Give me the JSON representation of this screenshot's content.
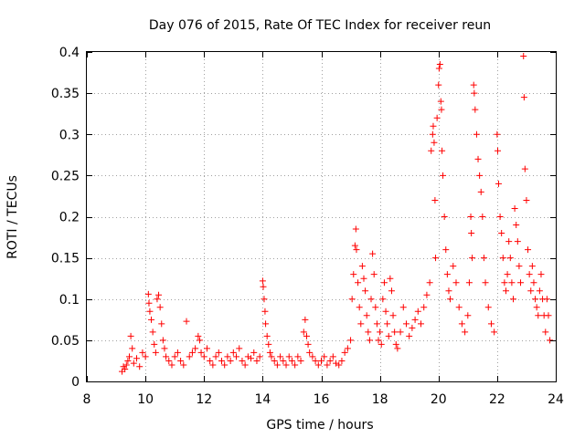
{
  "chart_data": {
    "type": "scatter",
    "title": "Day 076 of 2015, Rate Of TEC Index for receiver reun",
    "xlabel": "GPS time / hours",
    "ylabel": "ROTI / TECUs",
    "xlim": [
      8,
      24
    ],
    "ylim": [
      0,
      0.4
    ],
    "xticks": [
      8,
      10,
      12,
      14,
      16,
      18,
      20,
      22,
      24
    ],
    "yticks": [
      0,
      0.05,
      0.1,
      0.15,
      0.2,
      0.25,
      0.3,
      0.35,
      0.4
    ],
    "xtick_labels": [
      "8",
      "10",
      "12",
      "14",
      "16",
      "18",
      "20",
      "22",
      "24"
    ],
    "ytick_labels": [
      "0",
      "0.05",
      "0.1",
      "0.15",
      "0.2",
      "0.25",
      "0.3",
      "0.35",
      "0.4"
    ],
    "grid": true,
    "marker": "+",
    "color": "#ff0000",
    "series": [
      {
        "name": "ROTI",
        "points": [
          [
            9.2,
            0.012
          ],
          [
            9.25,
            0.018
          ],
          [
            9.3,
            0.015
          ],
          [
            9.35,
            0.02
          ],
          [
            9.4,
            0.025
          ],
          [
            9.45,
            0.03
          ],
          [
            9.5,
            0.055
          ],
          [
            9.55,
            0.04
          ],
          [
            9.6,
            0.022
          ],
          [
            9.7,
            0.028
          ],
          [
            9.8,
            0.018
          ],
          [
            9.9,
            0.035
          ],
          [
            10.0,
            0.03
          ],
          [
            10.1,
            0.106
          ],
          [
            10.12,
            0.095
          ],
          [
            10.15,
            0.085
          ],
          [
            10.2,
            0.075
          ],
          [
            10.25,
            0.06
          ],
          [
            10.3,
            0.045
          ],
          [
            10.35,
            0.035
          ],
          [
            10.4,
            0.1
          ],
          [
            10.45,
            0.105
          ],
          [
            10.5,
            0.09
          ],
          [
            10.55,
            0.07
          ],
          [
            10.6,
            0.05
          ],
          [
            10.65,
            0.04
          ],
          [
            10.7,
            0.03
          ],
          [
            10.8,
            0.025
          ],
          [
            10.9,
            0.02
          ],
          [
            11.0,
            0.03
          ],
          [
            11.1,
            0.035
          ],
          [
            11.2,
            0.025
          ],
          [
            11.3,
            0.02
          ],
          [
            11.4,
            0.073
          ],
          [
            11.5,
            0.03
          ],
          [
            11.6,
            0.035
          ],
          [
            11.7,
            0.04
          ],
          [
            11.8,
            0.055
          ],
          [
            11.85,
            0.05
          ],
          [
            11.9,
            0.035
          ],
          [
            12.0,
            0.03
          ],
          [
            12.1,
            0.04
          ],
          [
            12.2,
            0.025
          ],
          [
            12.3,
            0.02
          ],
          [
            12.4,
            0.03
          ],
          [
            12.5,
            0.035
          ],
          [
            12.6,
            0.025
          ],
          [
            12.7,
            0.02
          ],
          [
            12.8,
            0.03
          ],
          [
            12.9,
            0.025
          ],
          [
            13.0,
            0.035
          ],
          [
            13.1,
            0.03
          ],
          [
            13.2,
            0.04
          ],
          [
            13.3,
            0.025
          ],
          [
            13.4,
            0.02
          ],
          [
            13.5,
            0.03
          ],
          [
            13.6,
            0.028
          ],
          [
            13.7,
            0.035
          ],
          [
            13.8,
            0.025
          ],
          [
            13.9,
            0.03
          ],
          [
            14.0,
            0.122
          ],
          [
            14.02,
            0.115
          ],
          [
            14.05,
            0.1
          ],
          [
            14.08,
            0.085
          ],
          [
            14.1,
            0.07
          ],
          [
            14.15,
            0.055
          ],
          [
            14.2,
            0.045
          ],
          [
            14.25,
            0.035
          ],
          [
            14.3,
            0.03
          ],
          [
            14.4,
            0.025
          ],
          [
            14.5,
            0.02
          ],
          [
            14.6,
            0.03
          ],
          [
            14.7,
            0.025
          ],
          [
            14.8,
            0.02
          ],
          [
            14.9,
            0.03
          ],
          [
            15.0,
            0.025
          ],
          [
            15.1,
            0.02
          ],
          [
            15.2,
            0.03
          ],
          [
            15.3,
            0.025
          ],
          [
            15.4,
            0.06
          ],
          [
            15.45,
            0.075
          ],
          [
            15.5,
            0.055
          ],
          [
            15.55,
            0.045
          ],
          [
            15.6,
            0.035
          ],
          [
            15.7,
            0.03
          ],
          [
            15.8,
            0.025
          ],
          [
            15.9,
            0.02
          ],
          [
            16.0,
            0.025
          ],
          [
            16.1,
            0.03
          ],
          [
            16.2,
            0.02
          ],
          [
            16.3,
            0.025
          ],
          [
            16.4,
            0.03
          ],
          [
            16.5,
            0.022
          ],
          [
            16.6,
            0.02
          ],
          [
            16.7,
            0.025
          ],
          [
            16.8,
            0.035
          ],
          [
            16.9,
            0.04
          ],
          [
            17.0,
            0.05
          ],
          [
            17.05,
            0.1
          ],
          [
            17.1,
            0.13
          ],
          [
            17.15,
            0.165
          ],
          [
            17.18,
            0.185
          ],
          [
            17.2,
            0.16
          ],
          [
            17.25,
            0.12
          ],
          [
            17.3,
            0.09
          ],
          [
            17.35,
            0.07
          ],
          [
            17.4,
            0.14
          ],
          [
            17.45,
            0.125
          ],
          [
            17.5,
            0.11
          ],
          [
            17.55,
            0.08
          ],
          [
            17.6,
            0.06
          ],
          [
            17.65,
            0.05
          ],
          [
            17.7,
            0.1
          ],
          [
            17.75,
            0.155
          ],
          [
            17.8,
            0.13
          ],
          [
            17.85,
            0.09
          ],
          [
            17.9,
            0.07
          ],
          [
            17.95,
            0.05
          ],
          [
            18.0,
            0.06
          ],
          [
            18.05,
            0.045
          ],
          [
            18.1,
            0.1
          ],
          [
            18.15,
            0.12
          ],
          [
            18.2,
            0.085
          ],
          [
            18.25,
            0.07
          ],
          [
            18.3,
            0.055
          ],
          [
            18.35,
            0.125
          ],
          [
            18.4,
            0.11
          ],
          [
            18.45,
            0.08
          ],
          [
            18.5,
            0.06
          ],
          [
            18.55,
            0.045
          ],
          [
            18.6,
            0.04
          ],
          [
            18.7,
            0.06
          ],
          [
            18.8,
            0.09
          ],
          [
            18.9,
            0.07
          ],
          [
            19.0,
            0.055
          ],
          [
            19.1,
            0.065
          ],
          [
            19.2,
            0.075
          ],
          [
            19.3,
            0.085
          ],
          [
            19.4,
            0.07
          ],
          [
            19.5,
            0.09
          ],
          [
            19.6,
            0.105
          ],
          [
            19.7,
            0.12
          ],
          [
            19.75,
            0.28
          ],
          [
            19.8,
            0.3
          ],
          [
            19.82,
            0.31
          ],
          [
            19.85,
            0.29
          ],
          [
            19.88,
            0.22
          ],
          [
            19.9,
            0.15
          ],
          [
            19.95,
            0.32
          ],
          [
            20.0,
            0.36
          ],
          [
            20.02,
            0.38
          ],
          [
            20.05,
            0.385
          ],
          [
            20.08,
            0.34
          ],
          [
            20.1,
            0.33
          ],
          [
            20.12,
            0.28
          ],
          [
            20.15,
            0.25
          ],
          [
            20.2,
            0.2
          ],
          [
            20.25,
            0.16
          ],
          [
            20.3,
            0.13
          ],
          [
            20.35,
            0.11
          ],
          [
            20.4,
            0.1
          ],
          [
            20.5,
            0.14
          ],
          [
            20.6,
            0.12
          ],
          [
            20.7,
            0.09
          ],
          [
            20.8,
            0.07
          ],
          [
            20.9,
            0.06
          ],
          [
            21.0,
            0.08
          ],
          [
            21.05,
            0.12
          ],
          [
            21.1,
            0.2
          ],
          [
            21.12,
            0.18
          ],
          [
            21.15,
            0.15
          ],
          [
            21.2,
            0.36
          ],
          [
            21.22,
            0.35
          ],
          [
            21.25,
            0.33
          ],
          [
            21.3,
            0.3
          ],
          [
            21.35,
            0.27
          ],
          [
            21.4,
            0.25
          ],
          [
            21.45,
            0.23
          ],
          [
            21.5,
            0.2
          ],
          [
            21.55,
            0.15
          ],
          [
            21.6,
            0.12
          ],
          [
            21.7,
            0.09
          ],
          [
            21.8,
            0.07
          ],
          [
            21.9,
            0.06
          ],
          [
            22.0,
            0.3
          ],
          [
            22.02,
            0.28
          ],
          [
            22.05,
            0.24
          ],
          [
            22.1,
            0.2
          ],
          [
            22.15,
            0.18
          ],
          [
            22.2,
            0.15
          ],
          [
            22.25,
            0.12
          ],
          [
            22.3,
            0.11
          ],
          [
            22.35,
            0.13
          ],
          [
            22.4,
            0.17
          ],
          [
            22.45,
            0.15
          ],
          [
            22.5,
            0.12
          ],
          [
            22.55,
            0.1
          ],
          [
            22.6,
            0.21
          ],
          [
            22.65,
            0.19
          ],
          [
            22.7,
            0.17
          ],
          [
            22.75,
            0.14
          ],
          [
            22.8,
            0.12
          ],
          [
            22.9,
            0.395
          ],
          [
            22.92,
            0.345
          ],
          [
            22.95,
            0.258
          ],
          [
            23.0,
            0.22
          ],
          [
            23.05,
            0.16
          ],
          [
            23.1,
            0.13
          ],
          [
            23.15,
            0.11
          ],
          [
            23.2,
            0.14
          ],
          [
            23.25,
            0.12
          ],
          [
            23.3,
            0.1
          ],
          [
            23.35,
            0.09
          ],
          [
            23.4,
            0.08
          ],
          [
            23.45,
            0.11
          ],
          [
            23.5,
            0.13
          ],
          [
            23.55,
            0.1
          ],
          [
            23.6,
            0.08
          ],
          [
            23.65,
            0.06
          ],
          [
            23.7,
            0.1
          ],
          [
            23.75,
            0.08
          ],
          [
            23.8,
            0.05
          ]
        ]
      }
    ]
  }
}
